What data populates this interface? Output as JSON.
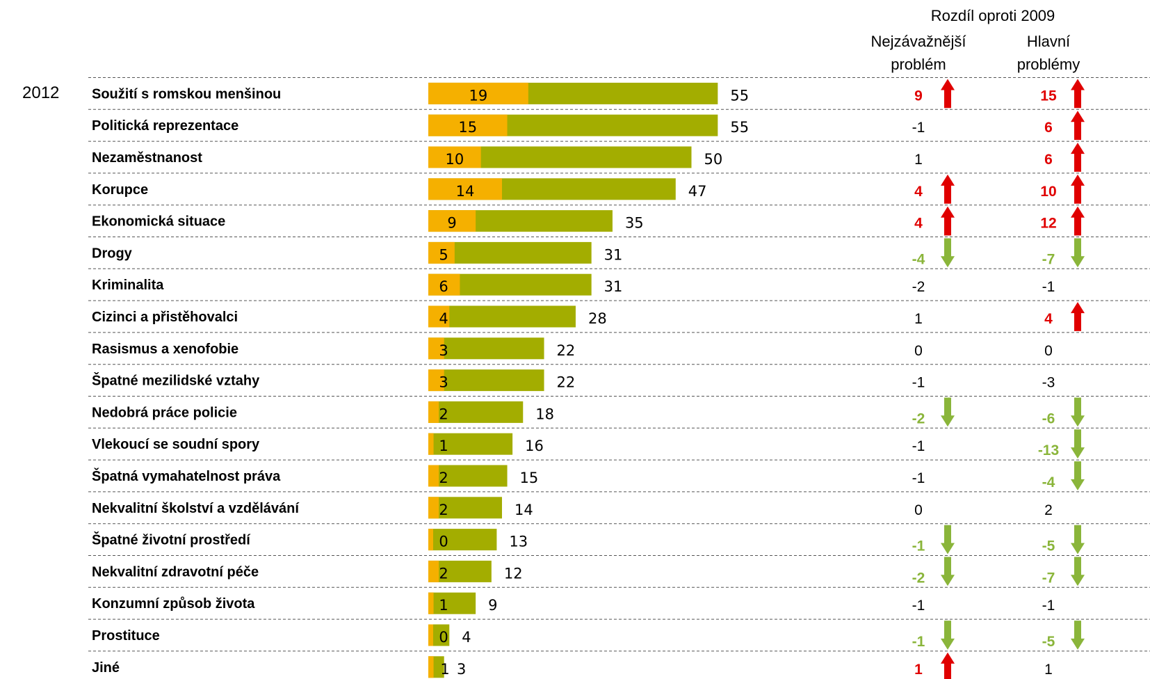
{
  "chart_data": {
    "type": "bar",
    "year_label": "2012",
    "header": {
      "title": "Rozdíl oproti 2009",
      "col1_line1": "Nejzávažnější",
      "col1_line2": "problém",
      "col2_line1": "Hlavní",
      "col2_line2": "problémy"
    },
    "categories": [
      "Soužití s romskou menšinou",
      "Politická reprezentace",
      "Nezaměstnanost",
      "Korupce",
      "Ekonomická situace",
      "Drogy",
      "Kriminalita",
      "Cizinci a přistěhovalci",
      "Rasismus a xenofobie",
      "Špatné mezilidské vztahy",
      "Nedobrá práce policie",
      "Vlekoucí se soudní spory",
      "Špatná vymahatelnost práva",
      "Nekvalitní školství a vzdělávání",
      "Špatné životní prostředí",
      "Nekvalitní zdravotní péče",
      "Konzumní způsob života",
      "Prostituce",
      "Jiné"
    ],
    "series": [
      {
        "values": [
          19,
          15,
          10,
          14,
          9,
          5,
          6,
          4,
          3,
          3,
          2,
          1,
          2,
          2,
          0,
          2,
          1,
          0,
          1
        ],
        "color": "#f5b000"
      },
      {
        "values": [
          55,
          55,
          50,
          47,
          35,
          31,
          31,
          28,
          22,
          22,
          18,
          16,
          15,
          14,
          13,
          12,
          9,
          4,
          3
        ],
        "color": "#a3ad00"
      }
    ],
    "diff_most_serious": [
      9,
      -1,
      1,
      4,
      4,
      -4,
      -2,
      1,
      0,
      -1,
      -2,
      -1,
      -1,
      0,
      -1,
      -2,
      -1,
      -1,
      1
    ],
    "diff_main": [
      15,
      6,
      6,
      10,
      12,
      -7,
      -1,
      4,
      0,
      -3,
      -6,
      -13,
      -4,
      2,
      -5,
      -7,
      -1,
      -5,
      1
    ],
    "arrow_most_serious": [
      "up",
      "",
      "",
      "up",
      "up",
      "down",
      "",
      "",
      "",
      "",
      "down",
      "",
      "",
      "",
      "down",
      "down",
      "",
      "down",
      "up"
    ],
    "arrow_main": [
      "up",
      "up",
      "up",
      "up",
      "up",
      "down",
      "",
      "up",
      "",
      "",
      "down",
      "down",
      "down",
      "",
      "down",
      "down",
      "",
      "down",
      ""
    ],
    "colors": {
      "up": "#e00000",
      "down": "#8ab53a",
      "orange": "#f5b000",
      "green": "#a3ad00"
    }
  }
}
